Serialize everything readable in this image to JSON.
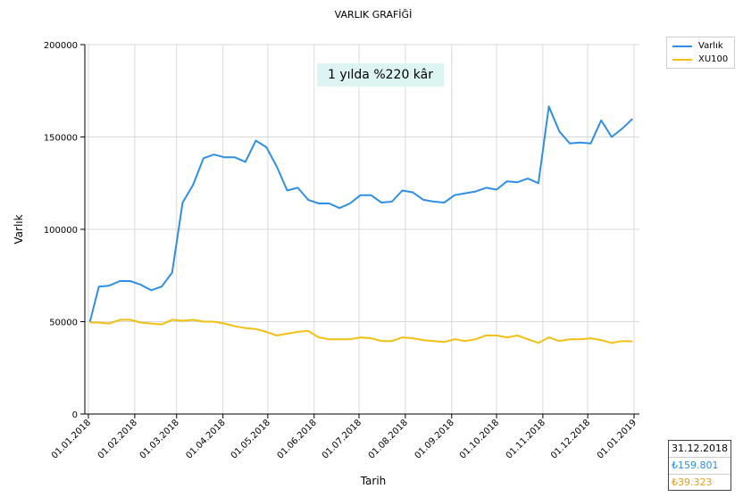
{
  "colors": {
    "varlik": "#2e8fe6",
    "xu100": "#f2c010"
  },
  "annotation": "1 yılda %220 kâr",
  "info_box": {
    "date": "31.12.2018",
    "varlik_value": "₺159.801",
    "xu100_value": "₺39.323"
  },
  "chart_data": {
    "type": "line",
    "title": "VARLIK GRAFİĞİ",
    "xlabel": "Tarih",
    "ylabel": "Varlık",
    "ylim": [
      0,
      200000
    ],
    "yticks": [
      0,
      50000,
      100000,
      150000,
      200000
    ],
    "xlim": [
      "2018-01-01",
      "2019-01-01"
    ],
    "xticks": [
      "01.01.2018",
      "01.02.2018",
      "01.03.2018",
      "01.04.2018",
      "01.05.2018",
      "01.06.2018",
      "01.07.2018",
      "01.08.2018",
      "01.09.2018",
      "01.10.2018",
      "01.11.2018",
      "01.12.2018",
      "01.01.2019"
    ],
    "grid": true,
    "legend": "outside-top-right",
    "x": [
      "2018-01-02",
      "2018-01-08",
      "2018-01-15",
      "2018-01-22",
      "2018-01-29",
      "2018-02-05",
      "2018-02-12",
      "2018-02-19",
      "2018-02-26",
      "2018-03-05",
      "2018-03-12",
      "2018-03-19",
      "2018-03-26",
      "2018-04-02",
      "2018-04-09",
      "2018-04-16",
      "2018-04-23",
      "2018-04-30",
      "2018-05-07",
      "2018-05-14",
      "2018-05-21",
      "2018-05-28",
      "2018-06-04",
      "2018-06-11",
      "2018-06-18",
      "2018-06-25",
      "2018-07-02",
      "2018-07-09",
      "2018-07-16",
      "2018-07-23",
      "2018-07-30",
      "2018-08-06",
      "2018-08-13",
      "2018-08-20",
      "2018-08-27",
      "2018-09-03",
      "2018-09-10",
      "2018-09-17",
      "2018-09-24",
      "2018-10-01",
      "2018-10-08",
      "2018-10-15",
      "2018-10-22",
      "2018-10-29",
      "2018-11-05",
      "2018-11-12",
      "2018-11-19",
      "2018-11-26",
      "2018-12-03",
      "2018-12-10",
      "2018-12-17",
      "2018-12-24",
      "2018-12-31"
    ],
    "series": [
      {
        "name": "Varlık",
        "values": [
          50000,
          69000,
          69500,
          72000,
          72000,
          70000,
          67000,
          69000,
          76500,
          114500,
          124000,
          138500,
          140500,
          139000,
          139000,
          136500,
          148000,
          144500,
          134000,
          121000,
          122500,
          116000,
          114000,
          114000,
          111500,
          114000,
          118500,
          118500,
          114500,
          115000,
          121000,
          120000,
          116000,
          115000,
          114500,
          118500,
          119500,
          120500,
          122500,
          121500,
          126000,
          125500,
          127500,
          125000,
          166500,
          153000,
          146500,
          147000,
          146500,
          159000,
          150000,
          154500,
          159801
        ]
      },
      {
        "name": "XU100",
        "values": [
          49500,
          49500,
          49000,
          51000,
          51000,
          49500,
          49000,
          48500,
          51000,
          50500,
          51000,
          50000,
          50000,
          49000,
          47500,
          46500,
          46000,
          44500,
          42500,
          43500,
          44500,
          45000,
          41500,
          40500,
          40500,
          40500,
          41500,
          41000,
          39500,
          39500,
          41500,
          41000,
          40000,
          39500,
          39000,
          40500,
          39500,
          40500,
          42500,
          42500,
          41500,
          42500,
          40500,
          38500,
          41500,
          39500,
          40500,
          40500,
          41000,
          40000,
          38500,
          39500,
          39323
        ]
      }
    ]
  }
}
